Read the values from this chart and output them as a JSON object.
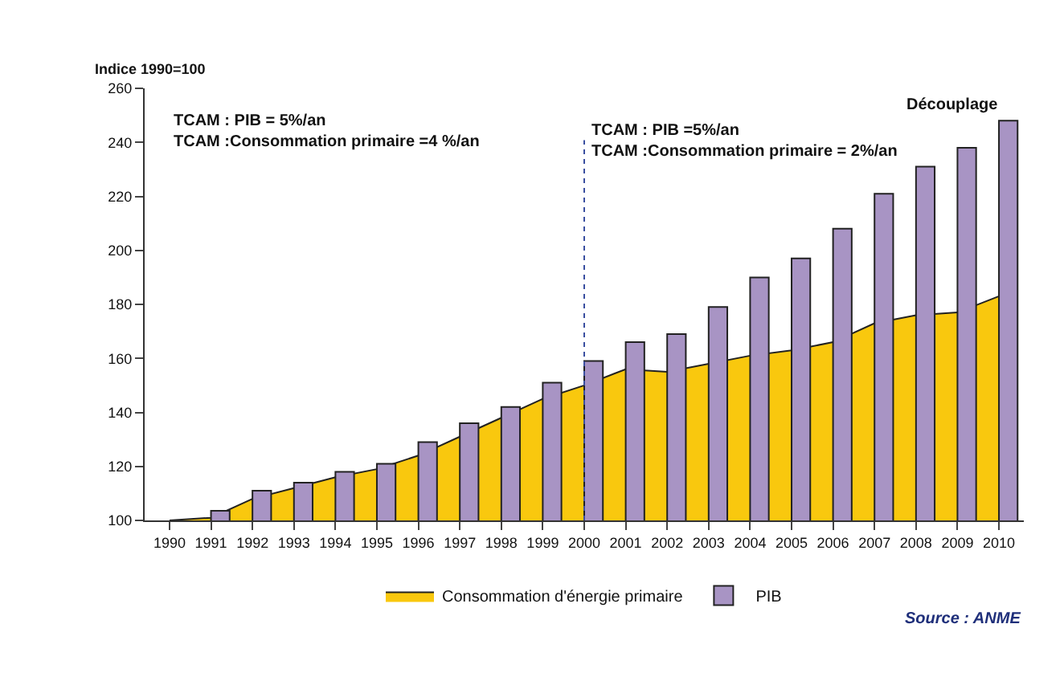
{
  "chart_data": {
    "type": "bar",
    "ylabel": "Indice 1990=100",
    "categories": [
      "1990",
      "1991",
      "1992",
      "1993",
      "1994",
      "1995",
      "1996",
      "1997",
      "1998",
      "1999",
      "2000",
      "2001",
      "2002",
      "2003",
      "2004",
      "2005",
      "2006",
      "2007",
      "2008",
      "2009",
      "2010"
    ],
    "series": [
      {
        "name": "Consommation d'énergie primaire",
        "type": "area",
        "color": "#f9c80e",
        "values": [
          100,
          101,
          108,
          112,
          116,
          119,
          124,
          131,
          138,
          145,
          150,
          156,
          155,
          158,
          161,
          163,
          166,
          173,
          176,
          177,
          183
        ]
      },
      {
        "name": "PIB",
        "color": "#a894c4",
        "values": [
          null,
          103.6,
          111,
          114,
          118,
          121,
          129,
          136,
          142,
          151,
          159,
          166,
          169,
          179,
          190,
          197,
          208,
          221,
          231,
          238,
          248
        ]
      }
    ],
    "ylim": [
      100,
      260
    ],
    "yticks": [
      100,
      120,
      140,
      160,
      180,
      200,
      220,
      240,
      260
    ],
    "ref_lines": [
      {
        "axis": "x",
        "value": "2000",
        "line_style": "dotted",
        "color": "#3a4fa0"
      }
    ],
    "annotations": [
      "TCAM : PIB = 5%/an\nTCAM :Consommation primaire =4 %/an",
      "TCAM : PIB =5%/an\nTCAM :Consommation primaire = 2%/an",
      "Découplage",
      "Source : ANME"
    ],
    "legend": "bottom"
  }
}
